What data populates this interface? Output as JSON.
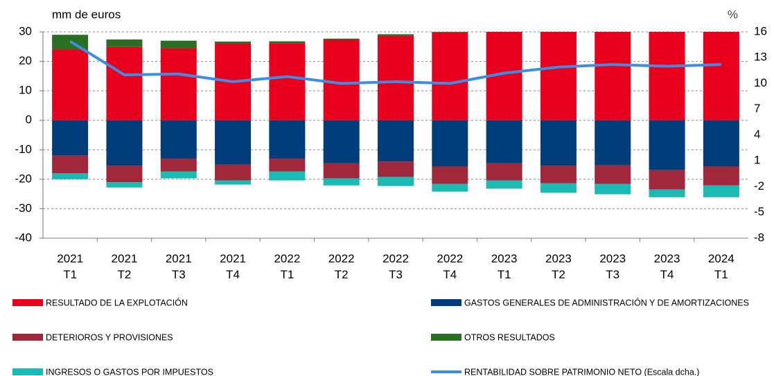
{
  "chart_data": {
    "type": "bar",
    "y_label": "mm de euros",
    "y2_label": "%",
    "categories": [
      "2021\nT1",
      "2021\nT2",
      "2021\nT3",
      "2021\nT4",
      "2022\nT1",
      "2022\nT2",
      "2022\nT3",
      "2022\nT4",
      "2023\nT1",
      "2023\nT2",
      "2023\nT3",
      "2023\nT4",
      "2024\nT1"
    ],
    "series": [
      {
        "name": "RESULTADO DE LA EXPLOTACIÓN",
        "color": "#e8001c",
        "type": "bar",
        "values": [
          24,
          24.9,
          24.5,
          26,
          26.2,
          27.3,
          28.6,
          29.8,
          31,
          32,
          33,
          33,
          34
        ]
      },
      {
        "name": "GASTOS GENERALES DE ADMINISTRACIÓN Y DE AMORTIZACIONES",
        "color": "#003d7a",
        "type": "bar",
        "values": [
          -12,
          -15.5,
          -13,
          -15,
          -13,
          -14.6,
          -14,
          -15.7,
          -14.6,
          -15.5,
          -15.3,
          -16.9,
          -15.7
        ]
      },
      {
        "name": "DETERIOROS Y PROVISIONES",
        "color": "#a0283a",
        "type": "bar",
        "values": [
          -6,
          -5.5,
          -4.4,
          -5.4,
          -4.4,
          -5.1,
          -5.2,
          -5.9,
          -5.8,
          -5.9,
          -6.3,
          -6.6,
          -6.4
        ]
      },
      {
        "name": "OTROS RESULTADOS",
        "color": "#2a6e22",
        "type": "bar",
        "values": [
          5,
          2.5,
          2.5,
          0.7,
          0.6,
          0.4,
          0.6,
          0.5,
          0.3,
          0.3,
          0.3,
          0.3,
          0.3
        ]
      },
      {
        "name": "INGRESOS O GASTOS POR IMPUESTOS",
        "color": "#1bbab5",
        "type": "bar",
        "values": [
          -2,
          -1.8,
          -2.3,
          -1.4,
          -3,
          -2.4,
          -3.1,
          -2.6,
          -2.8,
          -3.2,
          -3.5,
          -2.6,
          -4
        ]
      },
      {
        "name": "RENTABILIDAD SOBRE PATRIMONIO NETO (Escala dcha.)",
        "color": "#3a8ee6",
        "type": "line",
        "axis": "y2",
        "values": [
          14.9,
          11.0,
          11.1,
          10.2,
          10.8,
          10.0,
          10.2,
          10.0,
          11.2,
          11.9,
          12.2,
          12.0,
          12.2
        ]
      }
    ],
    "ylim": [
      -40,
      30
    ],
    "yticks": [
      -40,
      -30,
      -20,
      -10,
      0,
      10,
      20,
      30
    ],
    "y2lim": [
      -8,
      16
    ],
    "y2ticks": [
      -8,
      -5,
      -2,
      1,
      4,
      7,
      10,
      13,
      16
    ],
    "grid": true,
    "legend": "bottom"
  }
}
